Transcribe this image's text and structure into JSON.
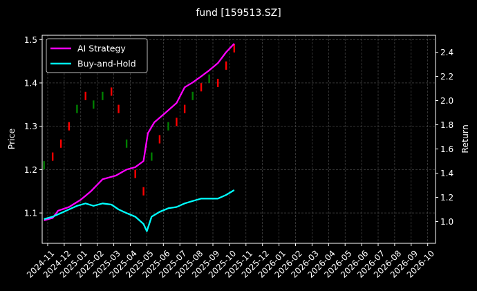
{
  "chart_data": {
    "type": "line",
    "title": "fund [159513.SZ]",
    "ylabel": "Price",
    "y2label": "Return",
    "ylim": [
      1.03,
      1.51
    ],
    "y2lim": [
      0.82,
      2.54
    ],
    "y_ticks": [
      "1.1",
      "1.2",
      "1.3",
      "1.4",
      "1.5"
    ],
    "y2_ticks": [
      "1.0",
      "1.2",
      "1.4",
      "1.6",
      "1.8",
      "2.0",
      "2.2",
      "2.4"
    ],
    "x_ticks": [
      "2024-11",
      "2024-12",
      "2025-01",
      "2025-02",
      "2025-03",
      "2025-04",
      "2025-05",
      "2025-06",
      "2025-07",
      "2025-08",
      "2025-09",
      "2025-10",
      "2025-11",
      "2025-12",
      "2026-01",
      "2026-02",
      "2026-03",
      "2026-04",
      "2026-05",
      "2026-06",
      "2026-07",
      "2026-08",
      "2026-09",
      "2026-10"
    ],
    "grid": true,
    "legend_position": "top-left",
    "colors": {
      "background": "#000000",
      "ai_strategy": "#ff00ff",
      "buy_and_hold": "#00ffff",
      "candle_up": "#008000",
      "candle_down": "#ff0000"
    },
    "candles": [
      {
        "x": "2024-10-25",
        "y": 1.21,
        "dir": "up"
      },
      {
        "x": "2024-11-10",
        "y": 1.23,
        "dir": "down"
      },
      {
        "x": "2024-11-25",
        "y": 1.26,
        "dir": "down"
      },
      {
        "x": "2024-12-10",
        "y": 1.3,
        "dir": "down"
      },
      {
        "x": "2024-12-25",
        "y": 1.34,
        "dir": "up"
      },
      {
        "x": "2025-01-10",
        "y": 1.37,
        "dir": "down"
      },
      {
        "x": "2025-01-25",
        "y": 1.35,
        "dir": "up"
      },
      {
        "x": "2025-02-10",
        "y": 1.37,
        "dir": "up"
      },
      {
        "x": "2025-02-25",
        "y": 1.38,
        "dir": "down"
      },
      {
        "x": "2025-03-10",
        "y": 1.34,
        "dir": "down"
      },
      {
        "x": "2025-03-25",
        "y": 1.26,
        "dir": "up"
      },
      {
        "x": "2025-04-10",
        "y": 1.19,
        "dir": "down"
      },
      {
        "x": "2025-04-25",
        "y": 1.15,
        "dir": "down"
      },
      {
        "x": "2025-05-10",
        "y": 1.23,
        "dir": "up"
      },
      {
        "x": "2025-05-25",
        "y": 1.27,
        "dir": "down"
      },
      {
        "x": "2025-06-10",
        "y": 1.3,
        "dir": "up"
      },
      {
        "x": "2025-06-25",
        "y": 1.31,
        "dir": "down"
      },
      {
        "x": "2025-07-10",
        "y": 1.34,
        "dir": "down"
      },
      {
        "x": "2025-07-25",
        "y": 1.37,
        "dir": "up"
      },
      {
        "x": "2025-08-10",
        "y": 1.39,
        "dir": "down"
      },
      {
        "x": "2025-08-25",
        "y": 1.41,
        "dir": "up"
      },
      {
        "x": "2025-09-10",
        "y": 1.4,
        "dir": "down"
      },
      {
        "x": "2025-09-25",
        "y": 1.44,
        "dir": "down"
      },
      {
        "x": "2025-10-10",
        "y": 1.48,
        "dir": "down"
      }
    ],
    "series": [
      {
        "name": "AI Strategy",
        "axis": "right",
        "points": [
          [
            "2024-10-25",
            1.01
          ],
          [
            "2024-11-10",
            1.03
          ],
          [
            "2024-11-20",
            1.09
          ],
          [
            "2024-12-10",
            1.12
          ],
          [
            "2025-01-01",
            1.18
          ],
          [
            "2025-01-20",
            1.25
          ],
          [
            "2025-02-10",
            1.35
          ],
          [
            "2025-03-05",
            1.38
          ],
          [
            "2025-03-25",
            1.43
          ],
          [
            "2025-04-10",
            1.45
          ],
          [
            "2025-04-25",
            1.5
          ],
          [
            "2025-05-03",
            1.73
          ],
          [
            "2025-05-15",
            1.82
          ],
          [
            "2025-06-05",
            1.9
          ],
          [
            "2025-06-25",
            1.98
          ],
          [
            "2025-07-10",
            2.11
          ],
          [
            "2025-07-25",
            2.15
          ],
          [
            "2025-08-10",
            2.2
          ],
          [
            "2025-08-25",
            2.25
          ],
          [
            "2025-09-10",
            2.31
          ],
          [
            "2025-09-25",
            2.4
          ],
          [
            "2025-10-10",
            2.47
          ]
        ]
      },
      {
        "name": "Buy-and-Hold",
        "axis": "right",
        "points": [
          [
            "2024-10-25",
            1.02
          ],
          [
            "2024-11-10",
            1.04
          ],
          [
            "2024-11-25",
            1.07
          ],
          [
            "2024-12-10",
            1.1
          ],
          [
            "2024-12-25",
            1.13
          ],
          [
            "2025-01-10",
            1.15
          ],
          [
            "2025-01-25",
            1.13
          ],
          [
            "2025-02-10",
            1.15
          ],
          [
            "2025-02-25",
            1.14
          ],
          [
            "2025-03-10",
            1.1
          ],
          [
            "2025-03-25",
            1.07
          ],
          [
            "2025-04-10",
            1.04
          ],
          [
            "2025-04-25",
            0.98
          ],
          [
            "2025-05-01",
            0.92
          ],
          [
            "2025-05-10",
            1.04
          ],
          [
            "2025-05-25",
            1.08
          ],
          [
            "2025-06-10",
            1.11
          ],
          [
            "2025-06-25",
            1.12
          ],
          [
            "2025-07-10",
            1.15
          ],
          [
            "2025-07-25",
            1.17
          ],
          [
            "2025-08-10",
            1.19
          ],
          [
            "2025-08-25",
            1.19
          ],
          [
            "2025-09-10",
            1.19
          ],
          [
            "2025-09-25",
            1.22
          ],
          [
            "2025-10-10",
            1.26
          ]
        ]
      }
    ]
  }
}
